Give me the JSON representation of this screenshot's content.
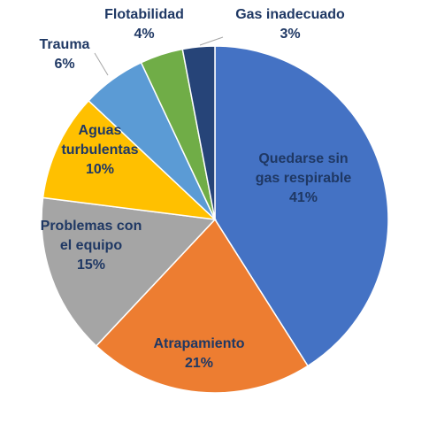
{
  "chart_data": {
    "type": "pie",
    "title": "",
    "slices": [
      {
        "name_lines": [
          "Quedarse sin",
          "gas respirable"
        ],
        "pct_label": "41%",
        "value": 41,
        "color": "#4472c4",
        "label_color": "#1f3864",
        "label_pos": "inside"
      },
      {
        "name_lines": [
          "Atrapamiento"
        ],
        "pct_label": "21%",
        "value": 21,
        "color": "#ed7d31",
        "label_color": "#1f3864",
        "label_pos": "inside"
      },
      {
        "name_lines": [
          "Problemas con",
          "el equipo"
        ],
        "pct_label": "15%",
        "value": 15,
        "color": "#a5a5a5",
        "label_color": "#1f3864",
        "label_pos": "inside"
      },
      {
        "name_lines": [
          "Aguas",
          "turbulentas"
        ],
        "pct_label": "10%",
        "value": 10,
        "color": "#ffc000",
        "label_color": "#1f3864",
        "label_pos": "inside"
      },
      {
        "name_lines": [
          "Trauma"
        ],
        "pct_label": "6%",
        "value": 6,
        "color": "#5b9bd5",
        "label_color": "#1f3864",
        "label_pos": "outside"
      },
      {
        "name_lines": [
          "Flotabilidad"
        ],
        "pct_label": "4%",
        "value": 4,
        "color": "#70ad47",
        "label_color": "#1f3864",
        "label_pos": "outside"
      },
      {
        "name_lines": [
          "Gas inadecuado"
        ],
        "pct_label": "3%",
        "value": 3,
        "color": "#264478",
        "label_color": "#1f3864",
        "label_pos": "outside"
      }
    ]
  }
}
